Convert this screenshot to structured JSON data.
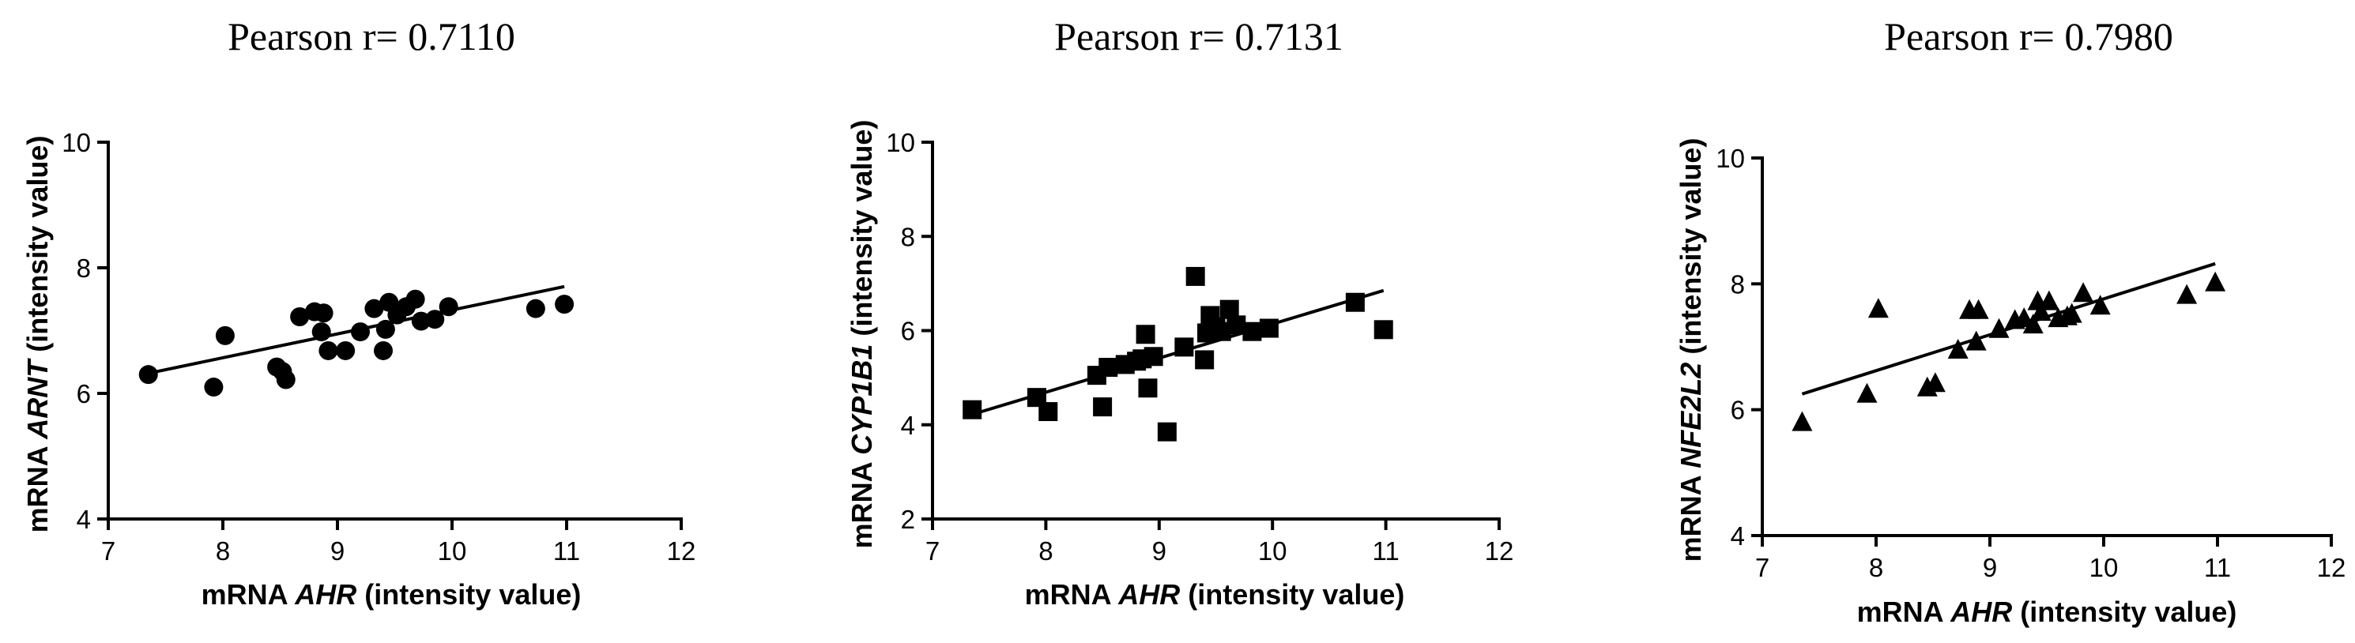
{
  "chart_data": [
    {
      "type": "scatter",
      "title": "Pearson r= 0.7110",
      "xlabel_prefix": "mRNA ",
      "xlabel_gene": "AHR",
      "xlabel_suffix": " (intensity value)",
      "ylabel_prefix": "mRNA ",
      "ylabel_gene": "ARNT",
      "ylabel_suffix": " (intensity value)",
      "xlim": [
        7,
        12
      ],
      "ylim": [
        4,
        10
      ],
      "xticks": [
        "7",
        "8",
        "9",
        "10",
        "11",
        "12"
      ],
      "yticks": [
        "4",
        "6",
        "8",
        "10"
      ],
      "marker": "circle",
      "x": [
        7.35,
        7.92,
        8.02,
        8.47,
        8.52,
        8.55,
        8.67,
        8.8,
        8.86,
        8.88,
        8.92,
        9.07,
        9.2,
        9.32,
        9.4,
        9.42,
        9.45,
        9.52,
        9.6,
        9.68,
        9.73,
        9.85,
        9.97,
        10.73,
        10.98
      ],
      "y": [
        6.3,
        6.1,
        6.92,
        6.42,
        6.35,
        6.22,
        7.22,
        7.3,
        6.98,
        7.28,
        6.68,
        6.68,
        6.98,
        7.35,
        6.68,
        7.02,
        7.45,
        7.25,
        7.38,
        7.5,
        7.15,
        7.18,
        7.38,
        7.35,
        7.42
      ],
      "fit": {
        "x": [
          7.35,
          10.98
        ],
        "y": [
          6.32,
          7.7
        ]
      }
    },
    {
      "type": "scatter",
      "title": "Pearson r= 0.7131",
      "xlabel_prefix": "mRNA ",
      "xlabel_gene": "AHR",
      "xlabel_suffix": " (intensity value)",
      "ylabel_prefix": "mRNA ",
      "ylabel_gene": "CYP1B1",
      "ylabel_suffix": " (intensity value)",
      "xlim": [
        7,
        12
      ],
      "ylim": [
        2,
        10
      ],
      "xticks": [
        "7",
        "8",
        "9",
        "10",
        "11",
        "12"
      ],
      "yticks": [
        "2",
        "4",
        "6",
        "8",
        "10"
      ],
      "marker": "square",
      "x": [
        7.35,
        7.92,
        8.02,
        8.45,
        8.5,
        8.55,
        8.7,
        8.8,
        8.85,
        8.88,
        8.9,
        8.95,
        9.07,
        9.22,
        9.32,
        9.4,
        9.42,
        9.45,
        9.5,
        9.55,
        9.62,
        9.68,
        9.82,
        9.97,
        10.73,
        10.98
      ],
      "y": [
        4.32,
        4.58,
        4.28,
        5.05,
        4.38,
        5.22,
        5.28,
        5.35,
        5.4,
        5.92,
        4.78,
        5.45,
        3.85,
        5.65,
        7.15,
        5.38,
        5.95,
        6.32,
        6.08,
        5.98,
        6.45,
        6.12,
        5.98,
        6.05,
        6.6,
        6.02
      ],
      "fit": {
        "x": [
          7.35,
          10.98
        ],
        "y": [
          4.22,
          6.85
        ]
      }
    },
    {
      "type": "scatter",
      "title": "Pearson r= 0.7980",
      "xlabel_prefix": "mRNA ",
      "xlabel_gene": "AHR",
      "xlabel_suffix": " (intensity value)",
      "ylabel_prefix": "mRNA ",
      "ylabel_gene": "NFE2L2",
      "ylabel_suffix": " (intensity value)",
      "xlim": [
        7,
        12
      ],
      "ylim": [
        4,
        10
      ],
      "xticks": [
        "7",
        "8",
        "9",
        "10",
        "11",
        "12"
      ],
      "yticks": [
        "4",
        "6",
        "8",
        "10"
      ],
      "marker": "triangle",
      "x": [
        7.35,
        7.92,
        8.02,
        8.45,
        8.52,
        8.72,
        8.82,
        8.9,
        8.88,
        9.08,
        9.22,
        9.3,
        9.38,
        9.42,
        9.45,
        9.52,
        9.6,
        9.68,
        9.72,
        9.82,
        9.97,
        10.73,
        10.98
      ],
      "y": [
        5.8,
        6.25,
        7.6,
        6.35,
        6.42,
        6.95,
        7.58,
        7.58,
        7.08,
        7.28,
        7.42,
        7.45,
        7.35,
        7.72,
        7.55,
        7.72,
        7.45,
        7.48,
        7.52,
        7.85,
        7.65,
        7.82,
        8.02
      ],
      "fit": {
        "x": [
          7.35,
          10.98
        ],
        "y": [
          6.25,
          8.32
        ]
      }
    }
  ]
}
